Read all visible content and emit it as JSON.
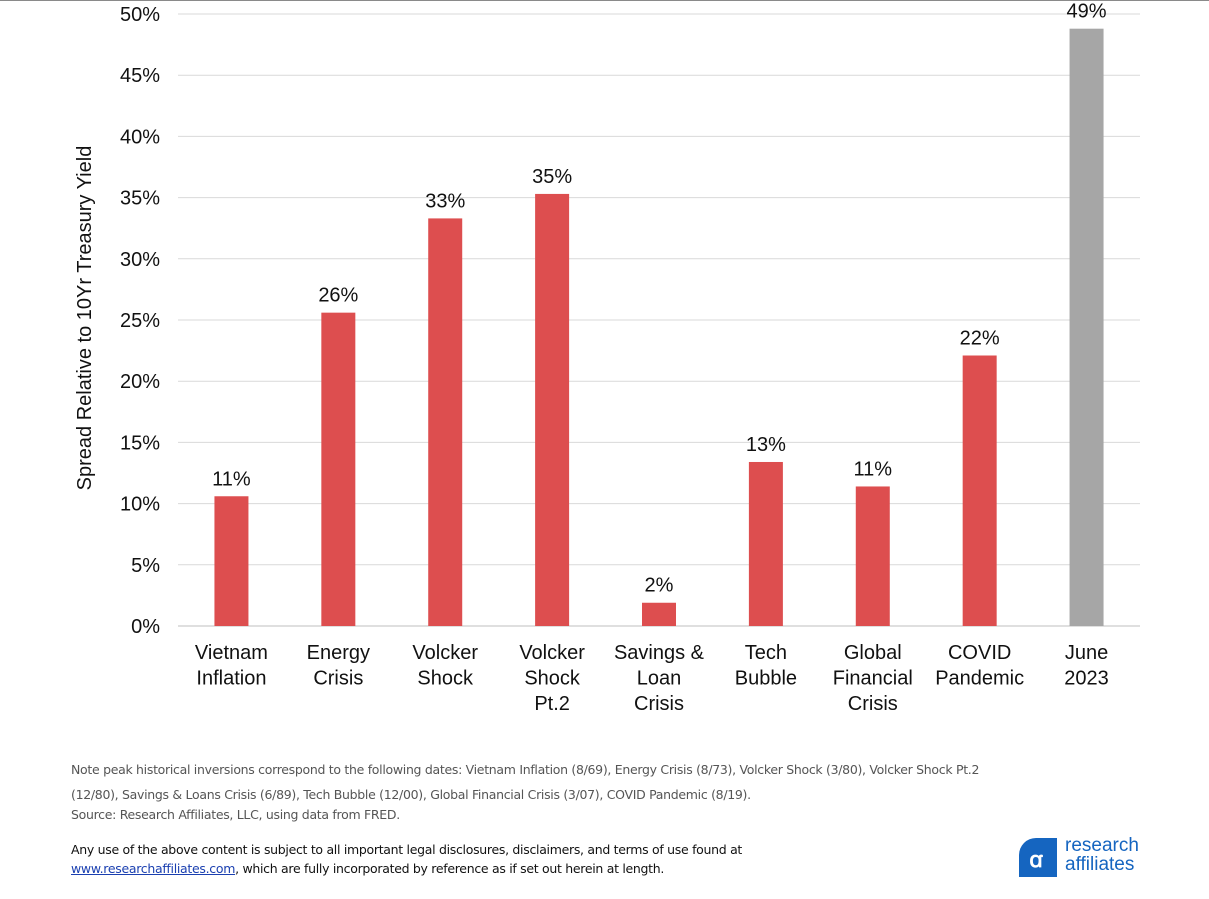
{
  "chart_data": {
    "type": "bar",
    "categories": [
      [
        "Vietnam",
        "Inflation"
      ],
      [
        "Energy",
        "Crisis"
      ],
      [
        "Volcker",
        "Shock"
      ],
      [
        "Volcker",
        "Shock",
        "Pt.2"
      ],
      [
        "Savings &",
        "Loan",
        "Crisis"
      ],
      [
        "Tech",
        "Bubble"
      ],
      [
        "Global",
        "Financial",
        "Crisis"
      ],
      [
        "COVID",
        "Pandemic"
      ],
      [
        "June",
        "2023"
      ]
    ],
    "values": [
      10.6,
      25.6,
      33.3,
      35.3,
      1.9,
      13.4,
      11.4,
      22.1,
      48.8
    ],
    "data_labels": [
      "11%",
      "26%",
      "33%",
      "35%",
      "2%",
      "13%",
      "11%",
      "22%",
      "49%"
    ],
    "colors": [
      "#dd4e4f",
      "#dd4e4f",
      "#dd4e4f",
      "#dd4e4f",
      "#dd4e4f",
      "#dd4e4f",
      "#dd4e4f",
      "#dd4e4f",
      "#a6a6a6"
    ],
    "ylabel": "Spread Relative to 10Yr Treasury Yield",
    "ylim": [
      0,
      50
    ],
    "yticks": [
      "0%",
      "5%",
      "10%",
      "15%",
      "20%",
      "25%",
      "30%",
      "35%",
      "40%",
      "45%",
      "50%"
    ],
    "grid": true,
    "title": ""
  },
  "footer": {
    "note": "Note peak historical inversions correspond to the following dates: Vietnam Inflation (8/69), Energy Crisis (8/73), Volcker Shock (3/80), Volcker Shock Pt.2 (12/80), Savings & Loans Crisis (6/89), Tech Bubble (12/00), Global Financial Crisis (3/07), COVID Pandemic (8/19).",
    "source": "Source: Research Affiliates, LLC, using data from FRED.",
    "legal_prefix": "Any use of the above content is subject to all important legal disclosures, disclaimers, and terms of use found at",
    "legal_link": "www.researchaffiliates.com",
    "legal_suffix": ", which are fully incorporated by reference as if set out herein at length."
  },
  "logo": {
    "line1": "research",
    "line2": "affiliates",
    "brand_color": "#1565c0"
  }
}
